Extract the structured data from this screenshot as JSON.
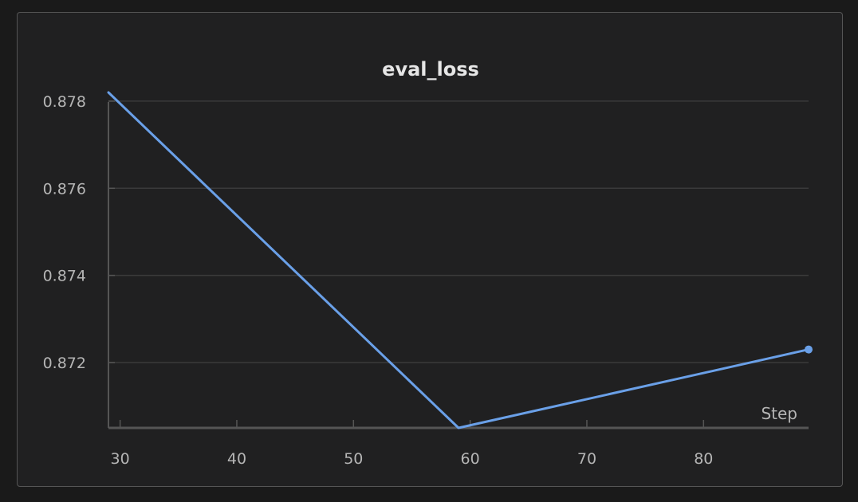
{
  "chart_data": {
    "type": "line",
    "title": "eval_loss",
    "xlabel": "Step",
    "ylabel": "",
    "xlim": [
      29,
      89
    ],
    "ylim": [
      0.8705,
      0.8782
    ],
    "x_ticks": [
      30,
      40,
      50,
      60,
      70,
      80
    ],
    "y_ticks": [
      0.872,
      0.874,
      0.876,
      0.878
    ],
    "grid": true,
    "series": [
      {
        "x": [
          29,
          59,
          89
        ],
        "y": [
          0.8782,
          0.8705,
          0.8723
        ],
        "color": "#6aa0e8"
      }
    ]
  }
}
